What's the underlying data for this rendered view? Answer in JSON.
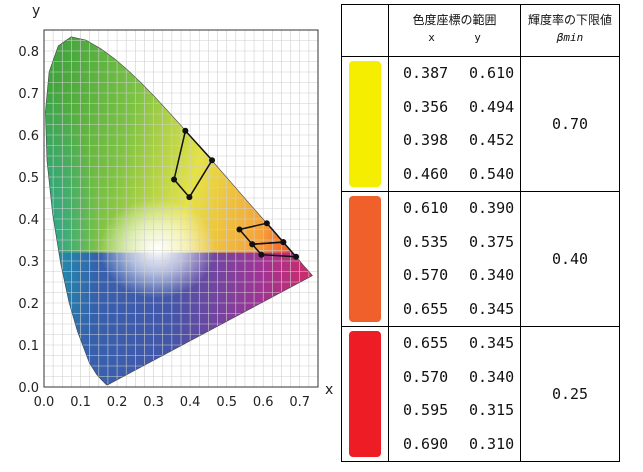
{
  "chart_data": {
    "type": "chromaticity-diagram",
    "xlabel": "x",
    "ylabel": "y",
    "x_ticks": [
      "0.0",
      "0.1",
      "0.2",
      "0.3",
      "0.4",
      "0.5",
      "0.6",
      "0.7"
    ],
    "y_ticks": [
      "0.0",
      "0.1",
      "0.2",
      "0.3",
      "0.4",
      "0.5",
      "0.6",
      "0.7",
      "0.8"
    ],
    "xlim": [
      0,
      0.75
    ],
    "ylim": [
      0,
      0.85
    ],
    "grid": true,
    "regions": [
      {
        "color": "#f5ee00",
        "points": [
          [
            0.387,
            0.61
          ],
          [
            0.356,
            0.494
          ],
          [
            0.398,
            0.452
          ],
          [
            0.46,
            0.54
          ]
        ]
      },
      {
        "color": "#f0602a",
        "points": [
          [
            0.61,
            0.39
          ],
          [
            0.535,
            0.375
          ],
          [
            0.57,
            0.34
          ],
          [
            0.655,
            0.345
          ]
        ]
      },
      {
        "color": "#ee1c24",
        "points": [
          [
            0.655,
            0.345
          ],
          [
            0.57,
            0.34
          ],
          [
            0.595,
            0.315
          ],
          [
            0.69,
            0.31
          ]
        ]
      }
    ]
  },
  "table": {
    "header": {
      "range_title": "色度座標の範囲",
      "x_label": "x",
      "y_label": "y",
      "beta_title": "輝度率の下限値",
      "beta_symbol": "βmin"
    },
    "rows": [
      {
        "swatch": "#f5ee00",
        "coords": [
          [
            "0.387",
            "0.610"
          ],
          [
            "0.356",
            "0.494"
          ],
          [
            "0.398",
            "0.452"
          ],
          [
            "0.460",
            "0.540"
          ]
        ],
        "beta": "0.70"
      },
      {
        "swatch": "#f0602a",
        "coords": [
          [
            "0.610",
            "0.390"
          ],
          [
            "0.535",
            "0.375"
          ],
          [
            "0.570",
            "0.340"
          ],
          [
            "0.655",
            "0.345"
          ]
        ],
        "beta": "0.40"
      },
      {
        "swatch": "#ee1c24",
        "coords": [
          [
            "0.655",
            "0.345"
          ],
          [
            "0.570",
            "0.340"
          ],
          [
            "0.595",
            "0.315"
          ],
          [
            "0.690",
            "0.310"
          ]
        ],
        "beta": "0.25"
      }
    ]
  }
}
